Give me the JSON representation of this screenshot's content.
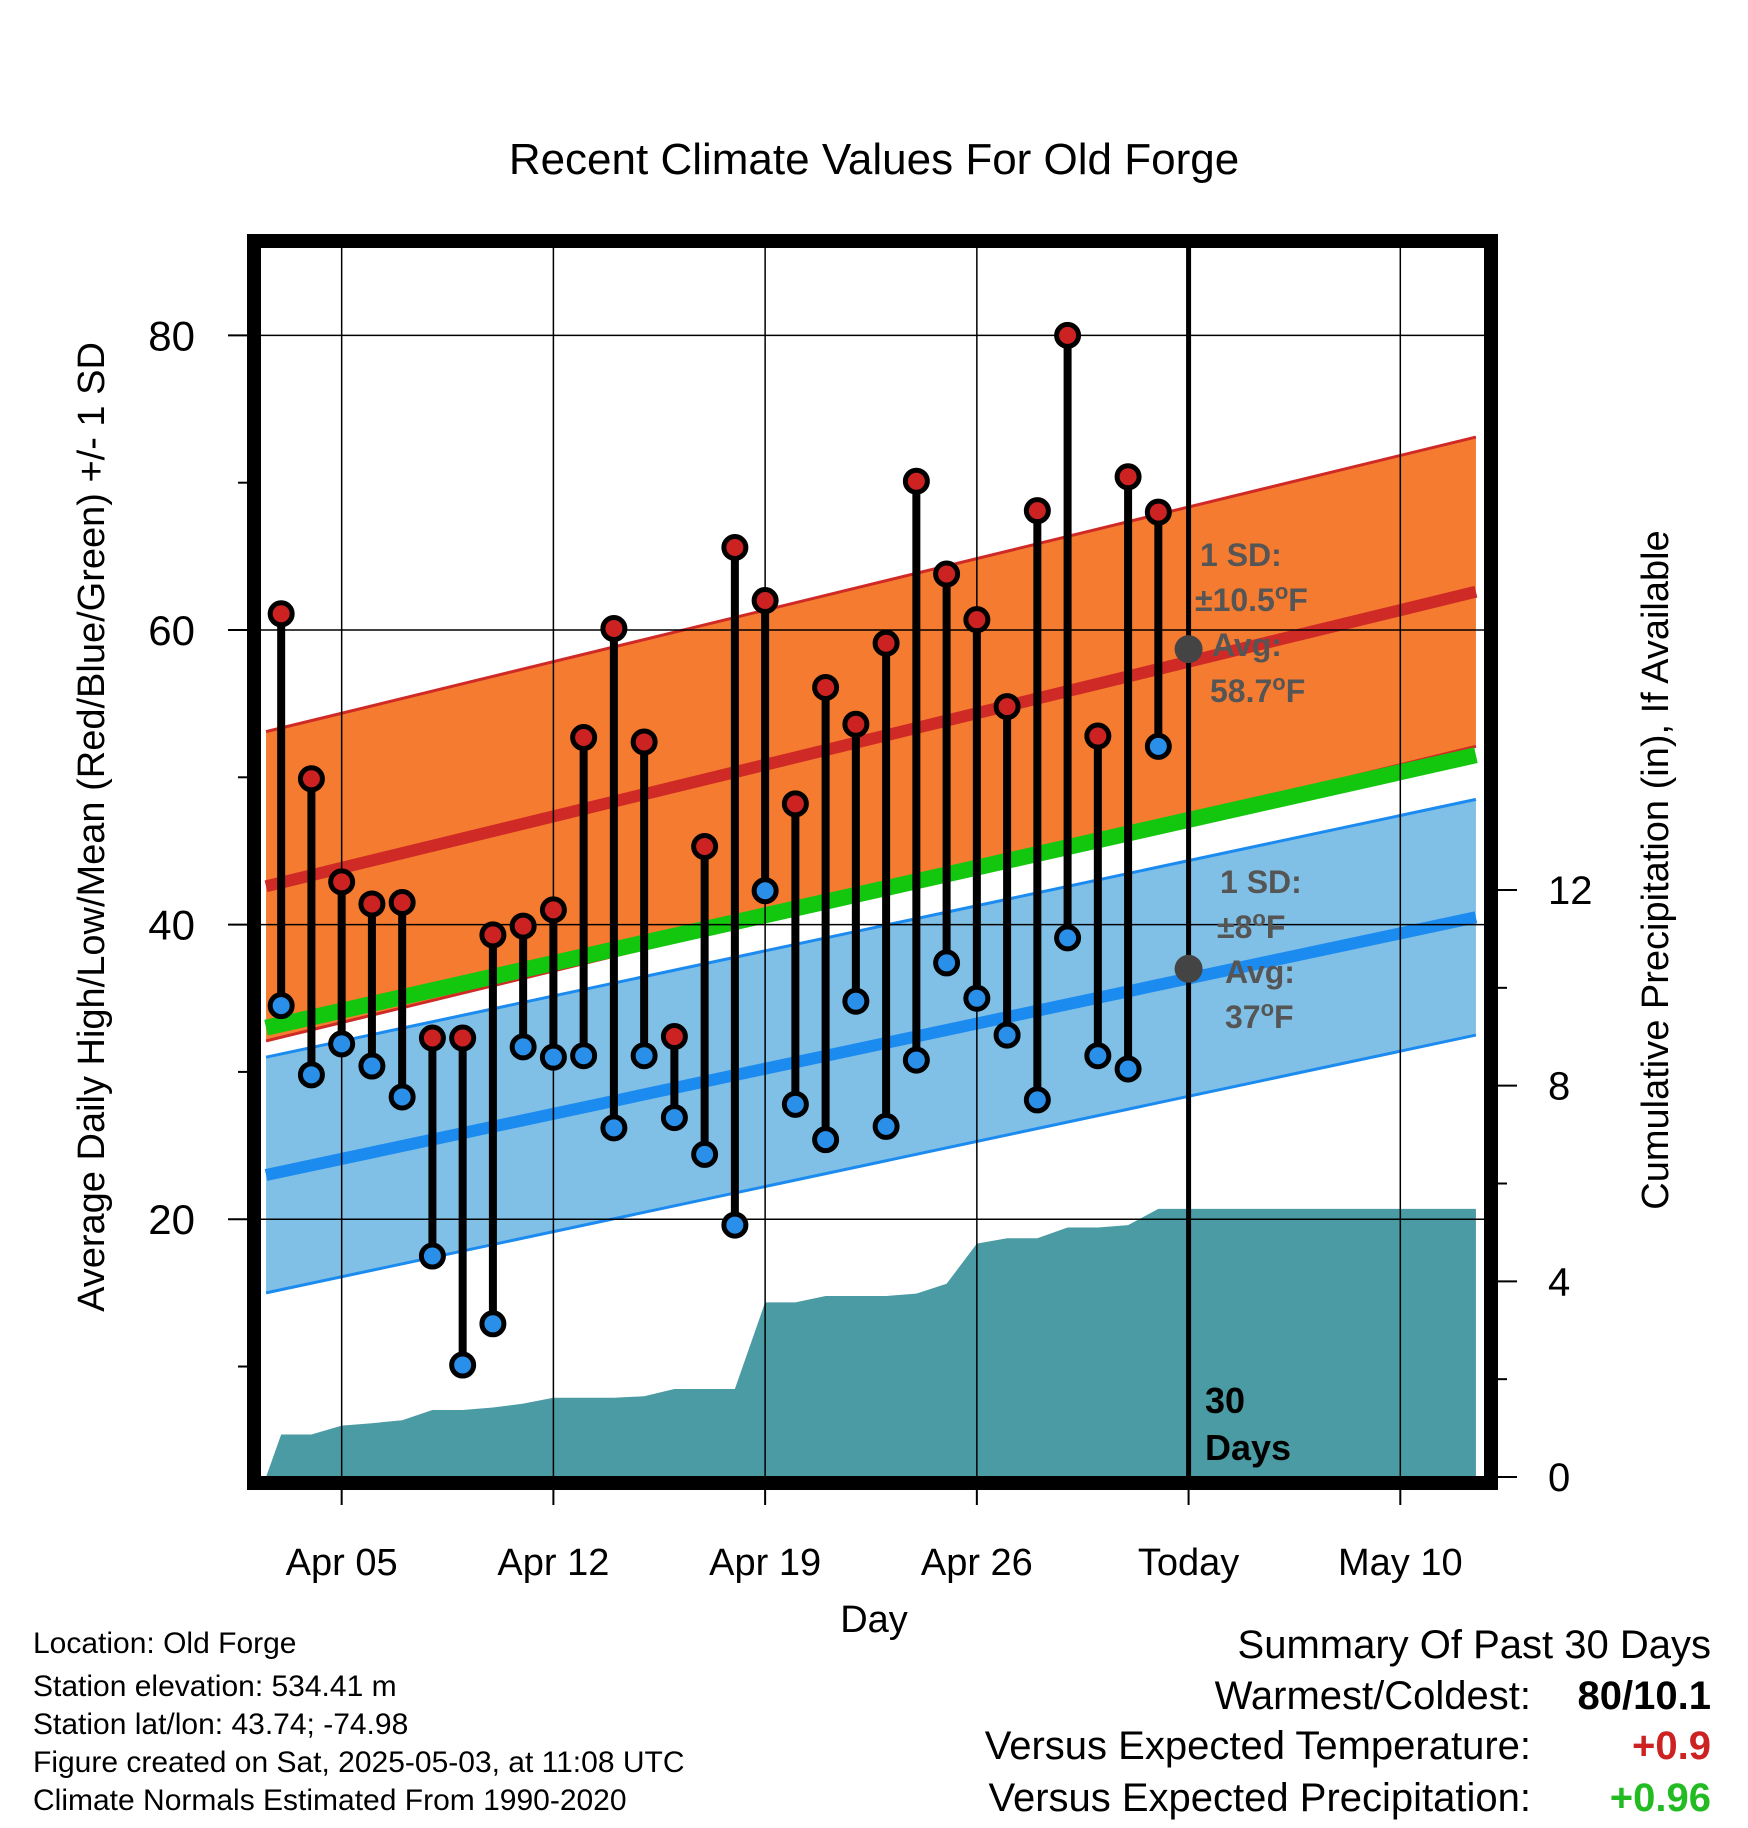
{
  "chart_data": {
    "type": "line",
    "title": "Recent Climate Values For Old Forge",
    "xlabel": "Day",
    "ylabel": "Average Daily High/Low/Mean (Red/Blue/Green) +/- 1 SD",
    "y2label": "Cumulative Precipitation (in), If Available",
    "x_tick_labels": [
      "Apr 05",
      "Apr 12",
      "Apr 19",
      "Apr 26",
      "Today",
      "May 10"
    ],
    "x_tick_days": [
      4,
      11,
      18,
      25,
      32,
      39
    ],
    "y_ticks": [
      20,
      40,
      60,
      80
    ],
    "y2_ticks": [
      0,
      4,
      8,
      12
    ],
    "ylim": [
      2.5,
      86
    ],
    "y2lim": [
      0,
      12
    ],
    "xlim": [
      1.3,
      41.8
    ],
    "today_day": 32,
    "today_marker_label": [
      "30",
      "Days"
    ],
    "observations": {
      "days": [
        2,
        3,
        4,
        5,
        6,
        7,
        8,
        9,
        10,
        11,
        12,
        13,
        14,
        15,
        16,
        17,
        18,
        19,
        20,
        21,
        22,
        23,
        24,
        25,
        26,
        27,
        28,
        29,
        30,
        31
      ],
      "highs": [
        61.1,
        49.9,
        42.9,
        41.4,
        41.5,
        32.3,
        32.3,
        39.3,
        39.9,
        41,
        52.7,
        60.1,
        52.4,
        32.4,
        45.3,
        65.6,
        62,
        48.2,
        56.1,
        53.6,
        59.1,
        70.1,
        63.8,
        60.7,
        54.8,
        68.1,
        80,
        52.8,
        70.4,
        68
      ],
      "lows": [
        34.5,
        29.8,
        31.9,
        30.4,
        28.3,
        17.5,
        10.1,
        12.9,
        31.7,
        31,
        31.1,
        26.2,
        31.1,
        26.9,
        24.4,
        19.6,
        42.3,
        27.8,
        25.4,
        34.8,
        26.3,
        30.8,
        37.4,
        35,
        32.5,
        28.1,
        39.1,
        31.1,
        30.2,
        52.1
      ]
    },
    "normals": {
      "days": [
        1.5,
        41.5
      ],
      "mean_high": [
        42.6,
        62.6
      ],
      "mean_high_sd": 10.5,
      "mean_low": [
        23,
        40.5
      ],
      "mean_low_sd": 8,
      "mean": [
        33,
        51.5
      ]
    },
    "precipitation": {
      "days": [
        1.5,
        2,
        3,
        4,
        5,
        6,
        7,
        8,
        9,
        10,
        11,
        12,
        13,
        14,
        15,
        16,
        17,
        18,
        19,
        20,
        21,
        22,
        23,
        24,
        25,
        26,
        27,
        28,
        29,
        30,
        31,
        41.5
      ],
      "cumulative": [
        0,
        0.87,
        0.87,
        1.05,
        1.1,
        1.16,
        1.37,
        1.37,
        1.42,
        1.5,
        1.62,
        1.62,
        1.62,
        1.65,
        1.8,
        1.8,
        1.8,
        3.57,
        3.57,
        3.7,
        3.7,
        3.7,
        3.75,
        3.95,
        4.77,
        4.88,
        4.88,
        5.1,
        5.1,
        5.15,
        5.48,
        5.48
      ]
    },
    "annotations": {
      "high_sd_label": "1 SD:",
      "high_sd_value": "±10.5°F",
      "high_avg_label": "Avg:",
      "high_avg_value": "58.7°F",
      "high_avg_point": 58.7,
      "low_sd_label": "1 SD:",
      "low_sd_value": "±8°F",
      "low_avg_label": "Avg:",
      "low_avg_value": "37°F",
      "low_avg_point": 37
    },
    "colors": {
      "high_band": "#f47b2f",
      "high_line": "#d02a26",
      "low_band": "#80c0e6",
      "low_line": "#1c8bf0",
      "mean_line": "#13c70e",
      "precip": "#4a9ba3",
      "high_dot": "#cc2222",
      "low_dot": "#2a8fe8",
      "avg_dot": "#444444",
      "annotation_text": "#555555"
    }
  },
  "info": {
    "location": "Location: Old Forge",
    "elevation": "Station elevation: 534.41 m",
    "latlon": "Station lat/lon: 43.74; -74.98",
    "created": "Figure created on Sat, 2025-05-03, at 11:08 UTC",
    "normals": "Climate Normals Estimated From 1990-2020"
  },
  "summary": {
    "heading": "Summary Of Past 30 Days",
    "warmest_label": "Warmest/Coldest:",
    "warmest_value": "80/10.1",
    "temp_label": "Versus Expected Temperature:",
    "temp_value": "+0.9",
    "temp_color": "#cc2222",
    "precip_label": "Versus Expected Precipitation:",
    "precip_value": "+0.96",
    "precip_color": "#22bb22"
  }
}
